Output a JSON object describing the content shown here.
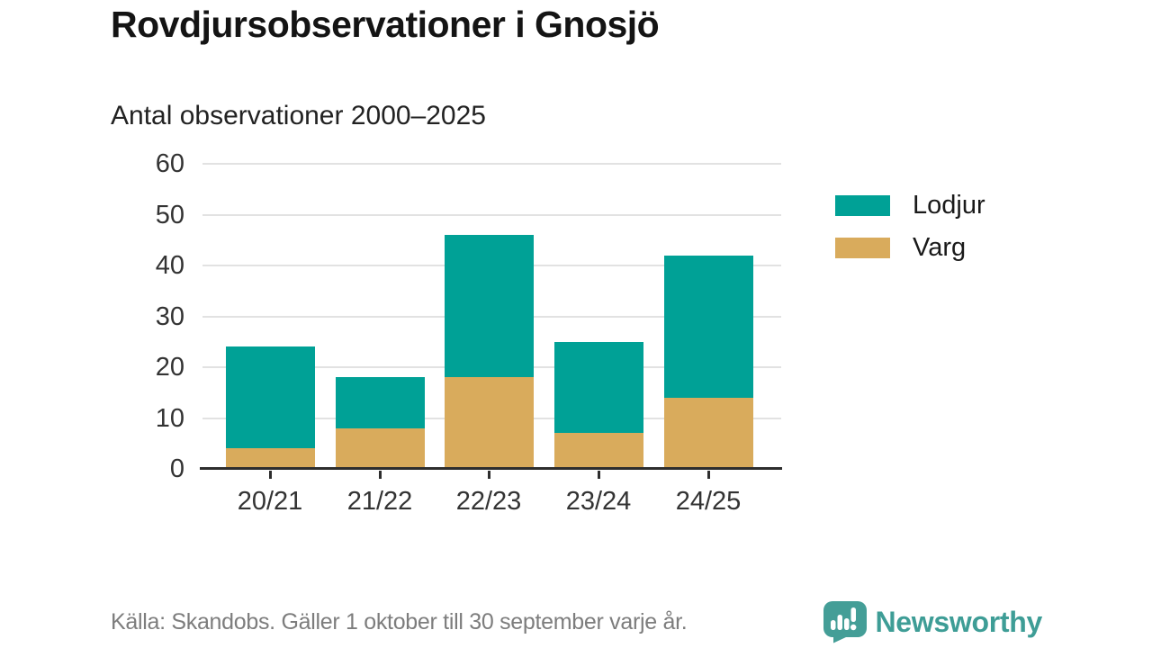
{
  "header": {
    "title": "Rovdjursobservationer i Gnosjö",
    "subtitle": "Antal observationer 2000–2025"
  },
  "chart_data": {
    "type": "bar",
    "stacked": true,
    "title": "Rovdjursobservationer i Gnosjö",
    "subtitle": "Antal observationer 2000–2025",
    "categories": [
      "20/21",
      "21/22",
      "22/23",
      "23/24",
      "24/25"
    ],
    "series": [
      {
        "name": "Lodjur",
        "color": "#00a196",
        "values": [
          20,
          10,
          28,
          18,
          28
        ]
      },
      {
        "name": "Varg",
        "color": "#d9ab5c",
        "values": [
          4,
          8,
          18,
          7,
          14
        ]
      }
    ],
    "stack_order_bottom_to_top": [
      "Varg",
      "Lodjur"
    ],
    "totals": [
      24,
      18,
      46,
      25,
      42
    ],
    "xlabel": "",
    "ylabel": "",
    "ylim": [
      0,
      60
    ],
    "yticks": [
      0,
      10,
      20,
      30,
      40,
      50,
      60
    ],
    "grid": "horizontal",
    "legend_position": "right"
  },
  "footer": {
    "source": "Källa: Skandobs. Gäller 1 oktober till 30 september varje år.",
    "brand": "Newsworthy"
  },
  "colors": {
    "lodjur": "#00a196",
    "varg": "#d9ab5c",
    "gridline": "#e2e2e2",
    "axis": "#2d2d2d",
    "text": "#333333",
    "source_text": "#7d7d7d",
    "brand_teal": "#3e9d96",
    "background": "#ffffff"
  }
}
